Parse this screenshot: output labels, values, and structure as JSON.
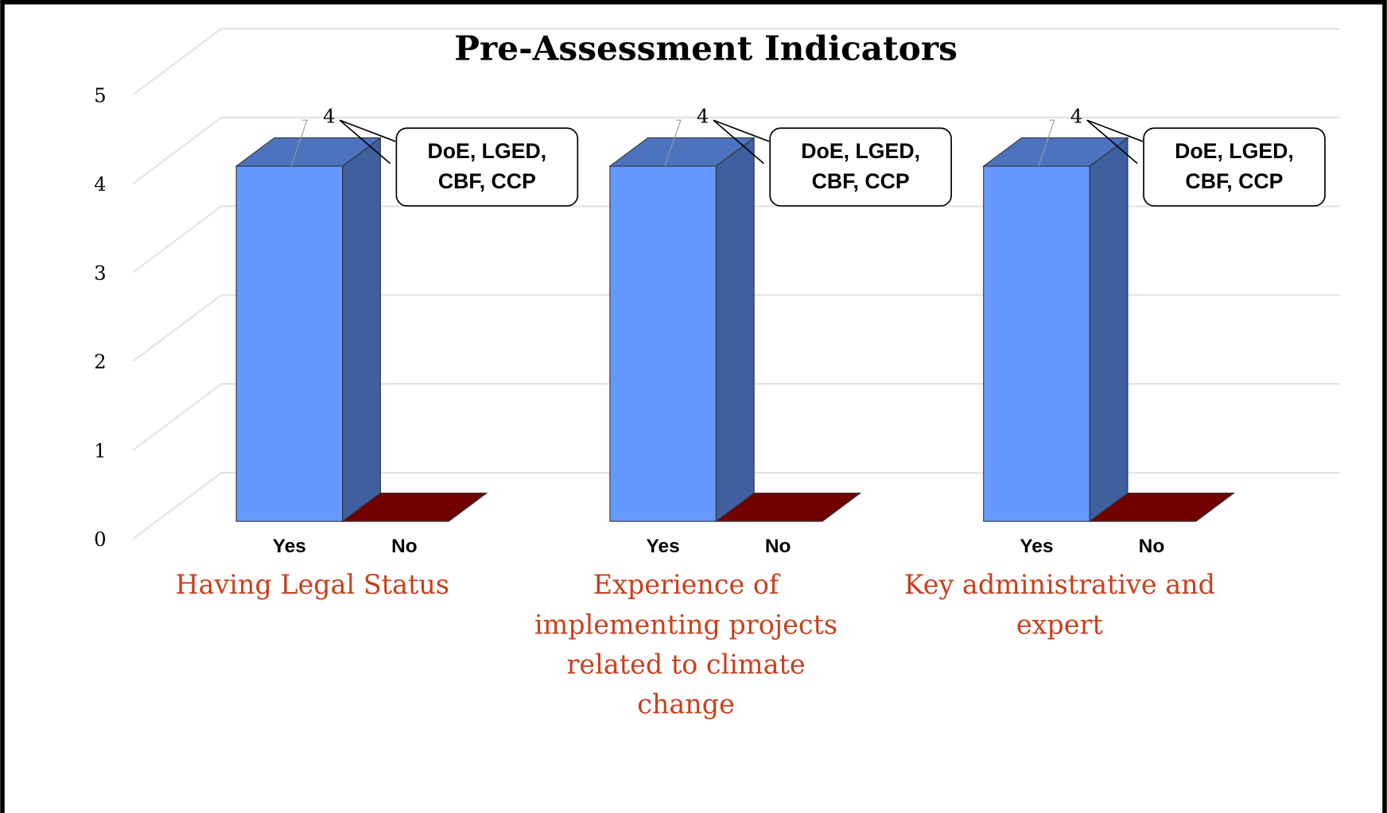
{
  "chart_data": {
    "type": "bar3d",
    "title": "Pre-Assessment Indicators",
    "categories": [
      "Having Legal Status",
      "Experience of implementing projects related to climate change",
      "Key administrative and expert"
    ],
    "series": [
      {
        "name": "Yes",
        "color": "#6699ff",
        "values": [
          4,
          4,
          4
        ]
      },
      {
        "name": "No",
        "color": "#990000",
        "values": [
          0,
          0,
          0
        ]
      }
    ],
    "annotations": [
      "DoE, LGED, CBF, CCP",
      "DoE, LGED, CBF, CCP",
      "DoE, LGED, CBF, CCP"
    ],
    "ylim": [
      0,
      5
    ],
    "yticks": [
      0,
      1,
      2,
      3,
      4,
      5
    ],
    "grid": true
  }
}
